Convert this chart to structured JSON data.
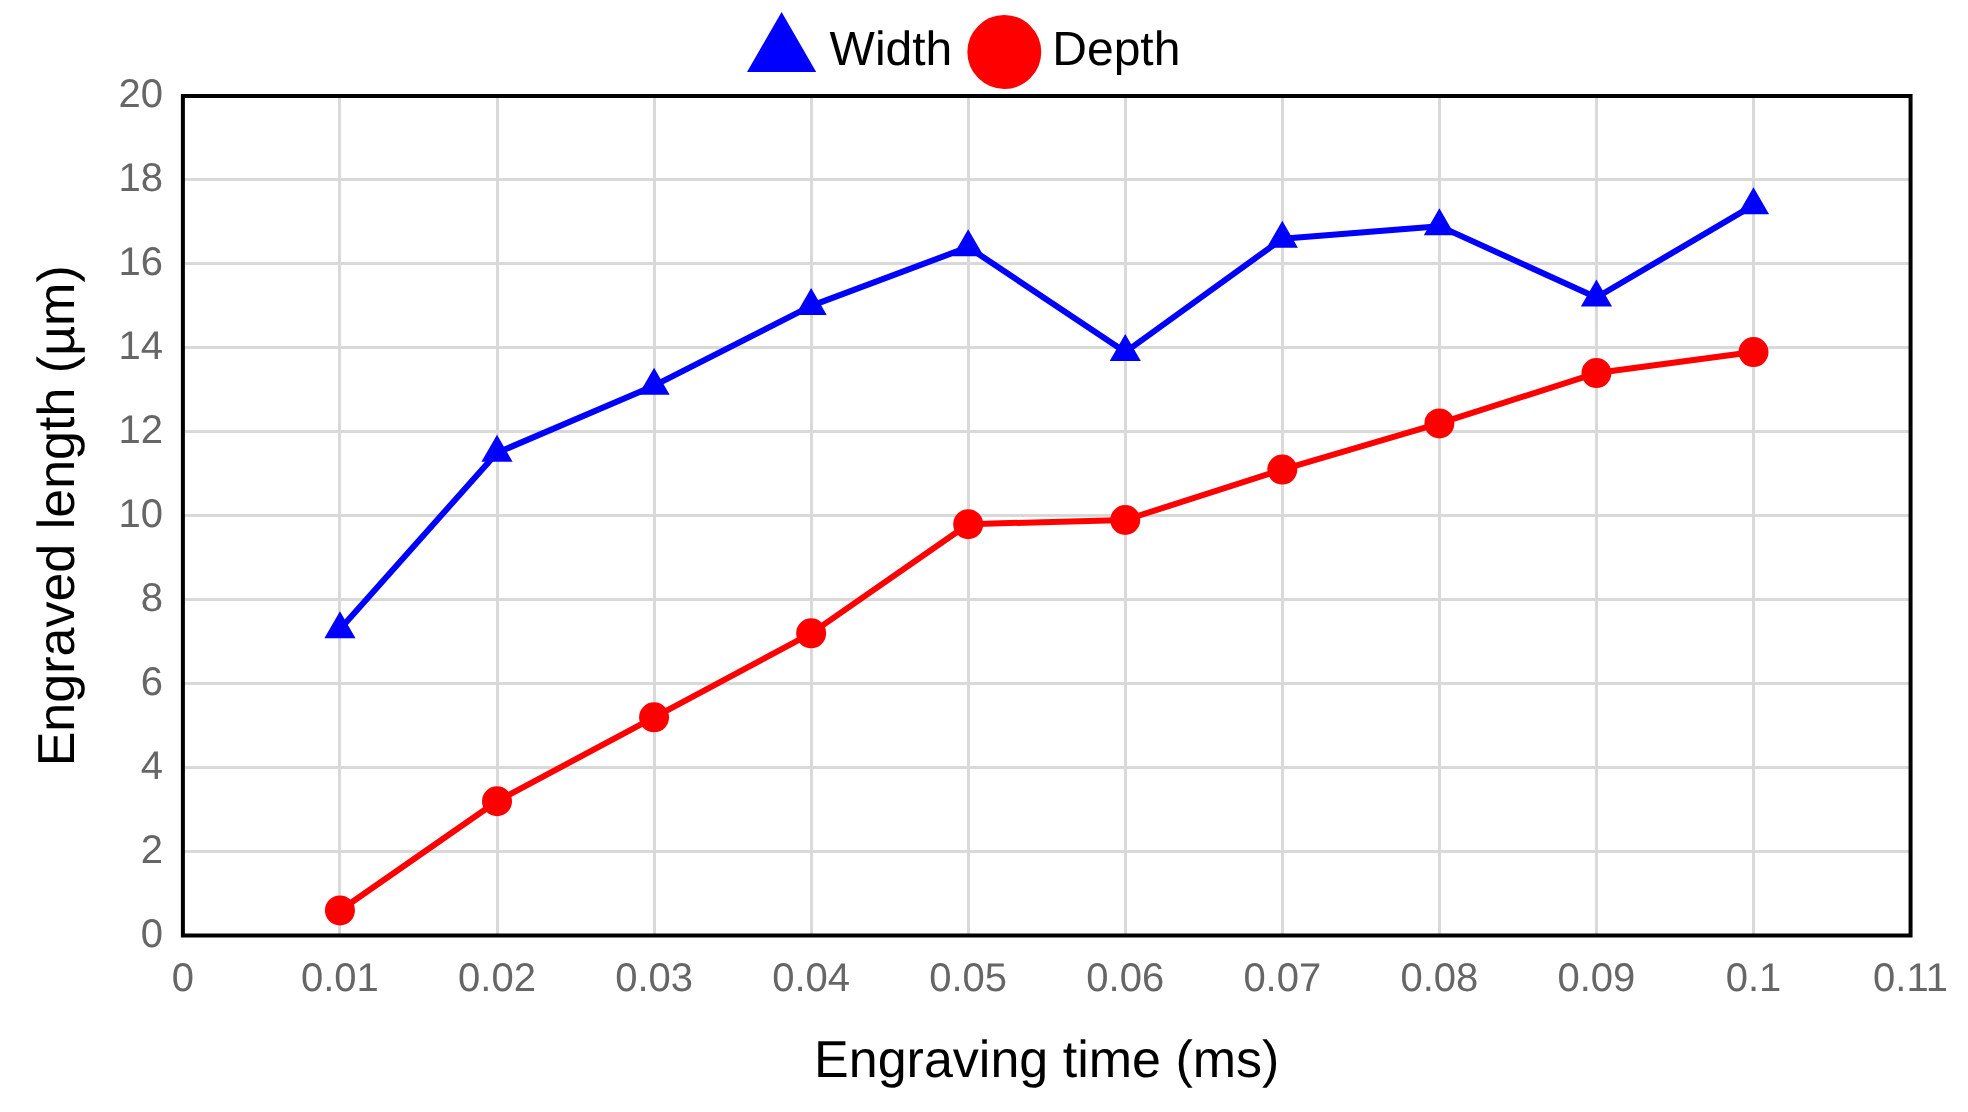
{
  "chart_data": {
    "type": "line",
    "xlabel": "Engraving time (ms)",
    "ylabel": "Engraved length (µm)",
    "x": [
      0.01,
      0.02,
      0.03,
      0.04,
      0.05,
      0.06,
      0.07,
      0.08,
      0.09,
      0.1
    ],
    "series": [
      {
        "name": "Width",
        "color": "#0000ff",
        "marker": "triangle",
        "values": [
          7.3,
          11.5,
          13.1,
          15.0,
          16.4,
          13.9,
          16.6,
          16.9,
          15.2,
          17.4
        ]
      },
      {
        "name": "Depth",
        "color": "#ff0000",
        "marker": "circle",
        "values": [
          0.6,
          3.2,
          5.2,
          7.2,
          9.8,
          9.9,
          11.1,
          12.2,
          13.4,
          13.9
        ]
      }
    ],
    "xlim": [
      0,
      0.11
    ],
    "xticks": [
      0,
      0.01,
      0.02,
      0.03,
      0.04,
      0.05,
      0.06,
      0.07,
      0.08,
      0.09,
      0.1,
      0.11
    ],
    "ylim": [
      0,
      20
    ],
    "yticks": [
      0,
      2,
      4,
      6,
      8,
      10,
      12,
      14,
      16,
      18,
      20
    ],
    "grid": true,
    "legend": "top",
    "line_style": "solid"
  }
}
